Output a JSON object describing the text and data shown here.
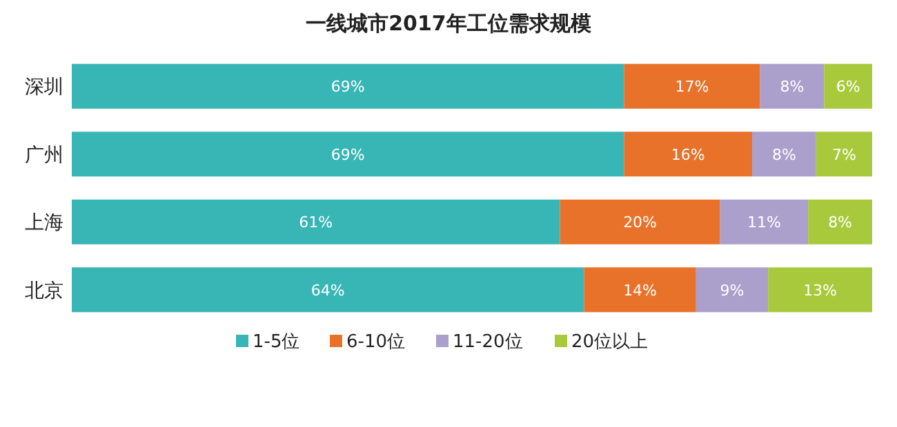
{
  "chart_data": {
    "type": "bar",
    "orientation": "horizontal",
    "stacked": true,
    "legend": "bottom",
    "title": "一线城市2017年工位需求规模",
    "categories": [
      "深圳",
      "广州",
      "上海",
      "北京"
    ],
    "series": [
      {
        "name": "1-5位",
        "color": "#38b5b5",
        "values": [
          69,
          69,
          61,
          64
        ],
        "value_labels": [
          "69%",
          "69%",
          "61%",
          "64%"
        ]
      },
      {
        "name": "6-10位",
        "color": "#e8722a",
        "values": [
          17,
          16,
          20,
          14
        ],
        "value_labels": [
          "17%",
          "16%",
          "20%",
          "14%"
        ]
      },
      {
        "name": "11-20位",
        "color": "#ab9fcb",
        "values": [
          8,
          8,
          11,
          9
        ],
        "value_labels": [
          "8%",
          "8%",
          "11%",
          "9%"
        ]
      },
      {
        "name": "20位以上",
        "color": "#a9c93c",
        "values": [
          6,
          7,
          8,
          13
        ],
        "value_labels": [
          "6%",
          "7%",
          "8%",
          "13%"
        ]
      }
    ]
  }
}
